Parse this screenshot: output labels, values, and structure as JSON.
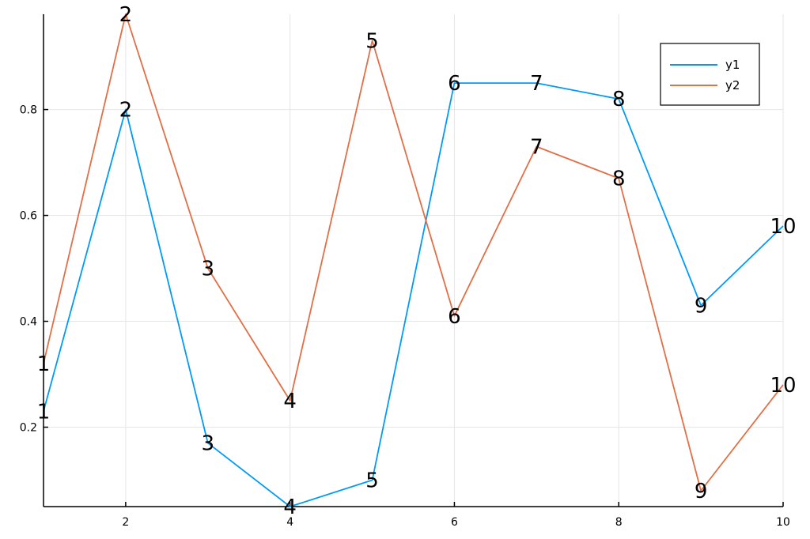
{
  "colors": {
    "y1": "#009af9",
    "y2": "#e26f46"
  },
  "chart_data": {
    "type": "line",
    "title": "",
    "xlabel": "",
    "ylabel": "",
    "xlim": [
      1,
      10
    ],
    "ylim": [
      0.05,
      0.98
    ],
    "x_ticks": [
      2,
      4,
      6,
      8,
      10
    ],
    "x_tick_labels": [
      "2",
      "4",
      "6",
      "8",
      "10"
    ],
    "y_ticks": [
      0.2,
      0.4,
      0.6,
      0.8
    ],
    "y_tick_labels": [
      "0.2",
      "0.4",
      "0.6",
      "0.8"
    ],
    "grid": true,
    "legend_position": "top-right",
    "x": [
      1,
      2,
      3,
      4,
      5,
      6,
      7,
      8,
      9,
      10
    ],
    "point_labels": [
      "1",
      "2",
      "3",
      "4",
      "5",
      "6",
      "7",
      "8",
      "9",
      "10"
    ],
    "series": [
      {
        "name": "y1",
        "color": "#009af9",
        "values": [
          0.23,
          0.8,
          0.17,
          0.05,
          0.1,
          0.85,
          0.85,
          0.82,
          0.43,
          0.58
        ]
      },
      {
        "name": "y2",
        "color": "#e26f46",
        "values": [
          0.32,
          0.98,
          0.5,
          0.25,
          0.93,
          0.41,
          0.73,
          0.67,
          0.08,
          0.28
        ]
      }
    ]
  }
}
